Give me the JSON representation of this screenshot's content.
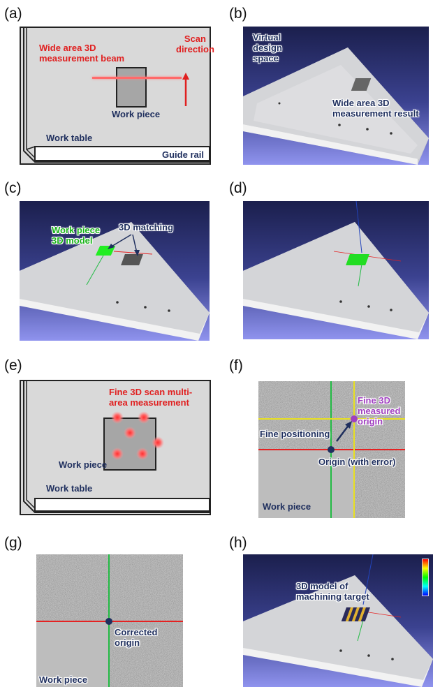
{
  "panels": {
    "a": {
      "letter": "(a)",
      "beam_label": [
        "Wide area 3D",
        "measurement beam"
      ],
      "scan_label": [
        "Scan",
        "direction"
      ],
      "piece_label": "Work piece",
      "table_label": "Work table",
      "rail_label": "Guide rail"
    },
    "b": {
      "letter": "(b)",
      "space_label": [
        "Virtual",
        "design",
        "space"
      ],
      "result_label": [
        "Wide area 3D",
        "measurement result"
      ]
    },
    "c": {
      "letter": "(c)",
      "model_label": [
        "Work piece",
        "3D model"
      ],
      "matching_label": "3D matching"
    },
    "d": {
      "letter": "(d)"
    },
    "e": {
      "letter": "(e)",
      "fine_label": [
        "Fine 3D scan multi-",
        "area measurement"
      ],
      "piece_label": "Work piece",
      "table_label": "Work table"
    },
    "f": {
      "letter": "(f)",
      "measured_label": [
        "Fine 3D",
        "measured",
        "origin"
      ],
      "positioning_label": "Fine positioning",
      "origin_label": "Origin (with error)",
      "piece_label": "Work piece"
    },
    "g": {
      "letter": "(g)",
      "corrected_label": [
        "Corrected",
        "origin"
      ],
      "piece_label": "Work piece"
    },
    "h": {
      "letter": "(h)",
      "target_label": [
        "3D model of",
        "machining target"
      ]
    }
  },
  "colors": {
    "beam": "#ff5555",
    "label_red": "#e02020",
    "label_navy": "#1f2f5e",
    "model_green": "#22dd22",
    "axis_red": "#e52222",
    "axis_green": "#22bb44",
    "axis_yellow": "#e8e020",
    "measured_purple": "#a040c0"
  }
}
